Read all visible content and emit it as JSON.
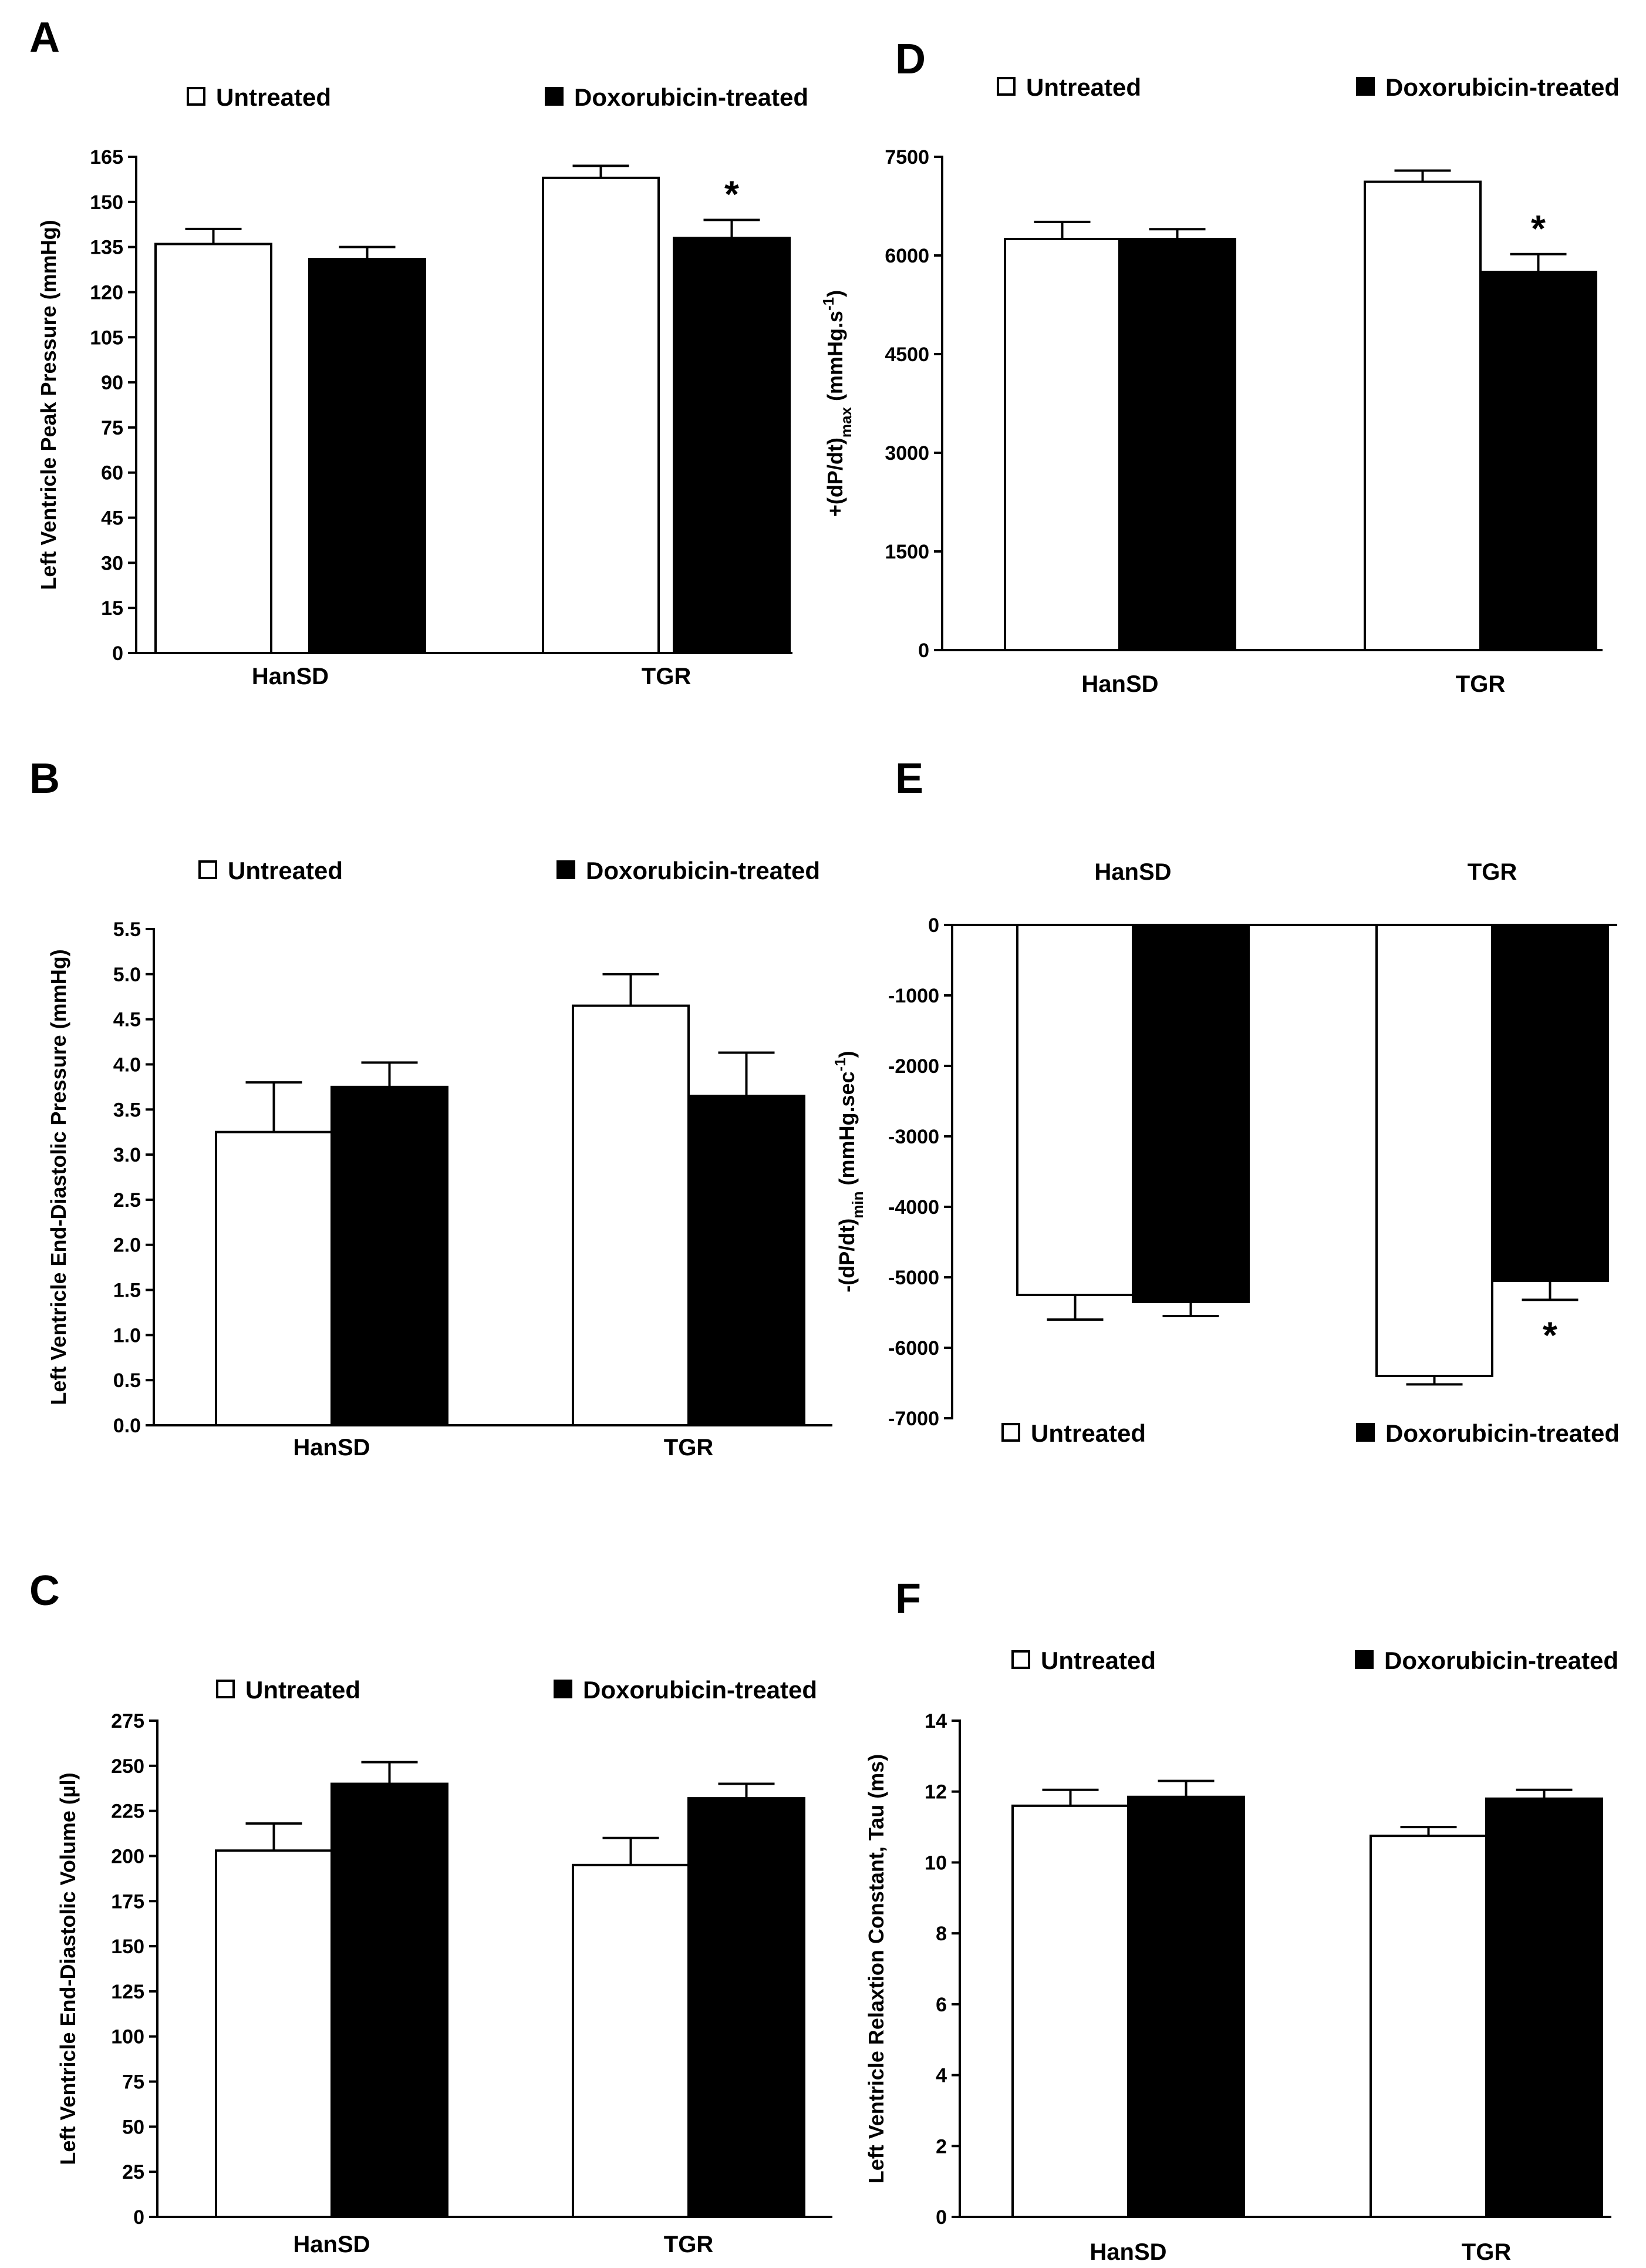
{
  "figure": {
    "legend": {
      "untreated": "Untreated",
      "treated": "Doxorubicin-treated"
    },
    "colors": {
      "untreated": "#ffffff",
      "treated": "#000000",
      "axis": "#000000"
    }
  },
  "chart_data": [
    {
      "panel": "A",
      "type": "bar",
      "categories": [
        "HanSD",
        "TGR"
      ],
      "series": [
        {
          "name": "Untreated",
          "values": [
            136,
            158
          ],
          "errors": [
            5,
            4
          ]
        },
        {
          "name": "Doxorubicin-treated",
          "values": [
            131,
            138
          ],
          "errors": [
            4,
            6
          ]
        }
      ],
      "significance": [
        {
          "category": "TGR",
          "series": "Doxorubicin-treated",
          "marker": "*"
        }
      ],
      "ylabel": "Left Ventricle Peak Pressure (mmHg)",
      "ylim": [
        0,
        165
      ],
      "yticks": [
        "0",
        "15",
        "30",
        "45",
        "60",
        "75",
        "90",
        "105",
        "120",
        "135",
        "150",
        "165"
      ]
    },
    {
      "panel": "B",
      "type": "bar",
      "categories": [
        "HanSD",
        "TGR"
      ],
      "series": [
        {
          "name": "Untreated",
          "values": [
            3.25,
            4.65
          ],
          "errors": [
            0.55,
            0.35
          ]
        },
        {
          "name": "Doxorubicin-treated",
          "values": [
            3.75,
            3.65
          ],
          "errors": [
            0.27,
            0.48
          ]
        }
      ],
      "significance": [],
      "ylabel": "Left Ventricle End-Diastolic Pressure (mmHg)",
      "ylim": [
        0,
        5.5
      ],
      "yticks": [
        "0.0",
        "0.5",
        "1.0",
        "1.5",
        "2.0",
        "2.5",
        "3.0",
        "3.5",
        "4.0",
        "4.5",
        "5.0",
        "5.5"
      ]
    },
    {
      "panel": "C",
      "type": "bar",
      "categories": [
        "HanSD",
        "TGR"
      ],
      "series": [
        {
          "name": "Untreated",
          "values": [
            203,
            195
          ],
          "errors": [
            15,
            15
          ]
        },
        {
          "name": "Doxorubicin-treated",
          "values": [
            240,
            232
          ],
          "errors": [
            12,
            8
          ]
        }
      ],
      "significance": [],
      "ylabel": "Left Ventricle End-Diastolic Volume (µl)",
      "ylim": [
        0,
        275
      ],
      "yticks": [
        "0",
        "25",
        "50",
        "75",
        "100",
        "125",
        "150",
        "175",
        "200",
        "225",
        "250",
        "275"
      ]
    },
    {
      "panel": "D",
      "type": "bar",
      "categories": [
        "HanSD",
        "TGR"
      ],
      "series": [
        {
          "name": "Untreated",
          "values": [
            6250,
            7120
          ],
          "errors": [
            260,
            170
          ]
        },
        {
          "name": "Doxorubicin-treated",
          "values": [
            6250,
            5750
          ],
          "errors": [
            150,
            270
          ]
        }
      ],
      "significance": [
        {
          "category": "TGR",
          "series": "Doxorubicin-treated",
          "marker": "*"
        }
      ],
      "ylabel": "+(dP/dt)max (mmHg.s-1)",
      "ylabel_parts": [
        "+(dP/dt)",
        "max",
        " (mmHg.s",
        "-1",
        ")"
      ],
      "ylim": [
        0,
        7500
      ],
      "yticks": [
        "0",
        "1500",
        "3000",
        "4500",
        "6000",
        "7500"
      ]
    },
    {
      "panel": "E",
      "type": "bar",
      "categories": [
        "HanSD",
        "TGR"
      ],
      "series": [
        {
          "name": "Untreated",
          "values": [
            -5250,
            -6400
          ],
          "errors": [
            350,
            120
          ]
        },
        {
          "name": "Doxorubicin-treated",
          "values": [
            -5350,
            -5050
          ],
          "errors": [
            200,
            270
          ]
        }
      ],
      "significance": [
        {
          "category": "TGR",
          "series": "Doxorubicin-treated",
          "marker": "*"
        }
      ],
      "ylabel": "-(dP/dt)min (mmHg.sec-1)",
      "ylabel_parts": [
        "-(dP/dt)",
        "min",
        " (mmHg.sec",
        "-1",
        ")"
      ],
      "ylim": [
        -7000,
        0
      ],
      "yticks": [
        "-7000",
        "-6000",
        "-5000",
        "-4000",
        "-3000",
        "-2000",
        "-1000",
        "0"
      ]
    },
    {
      "panel": "F",
      "type": "bar",
      "categories": [
        "HanSD",
        "TGR"
      ],
      "series": [
        {
          "name": "Untreated",
          "values": [
            11.6,
            10.75
          ],
          "errors": [
            0.45,
            0.25
          ]
        },
        {
          "name": "Doxorubicin-treated",
          "values": [
            11.85,
            11.8
          ],
          "errors": [
            0.45,
            0.25
          ]
        }
      ],
      "significance": [],
      "ylabel": "Left Ventricle Relaxtion Constant, Tau (ms)",
      "ylim": [
        0,
        14
      ],
      "yticks": [
        "0",
        "2",
        "4",
        "6",
        "8",
        "10",
        "12",
        "14"
      ]
    }
  ]
}
